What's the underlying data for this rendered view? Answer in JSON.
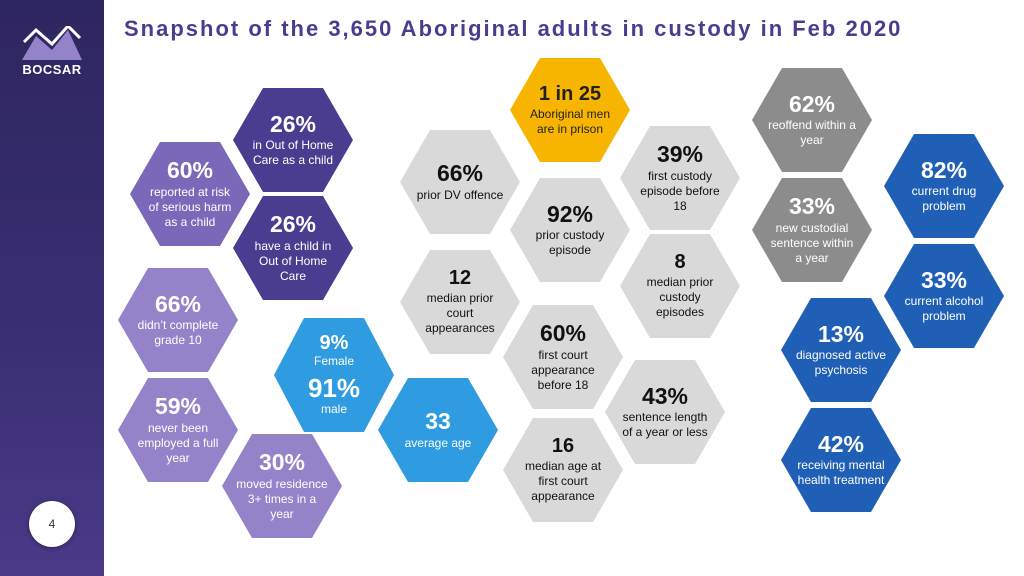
{
  "brand": "BOCSAR",
  "title": "Snapshot of the 3,650 Aboriginal adults in custody in Feb 2020",
  "page_number": "4",
  "colors": {
    "purple_dark": "#4a3d8f",
    "purple_light": "#9583c9",
    "grey": "#d9d9d9",
    "gold": "#f7b500",
    "blue_dark": "#1f5fb5",
    "blue_light": "#2f9be0"
  },
  "cells": {
    "oohc": {
      "value": "26%",
      "text": "in Out of Home Care as a child"
    },
    "risk": {
      "value": "60%",
      "text": "reported at risk of serious harm as a child"
    },
    "child_oohc": {
      "value": "26%",
      "text": "have a child in Out of Home Care"
    },
    "grade10": {
      "value": "66%",
      "text": "didn’t complete grade 10"
    },
    "employed": {
      "value": "59%",
      "text": "never been employed a full year"
    },
    "residence": {
      "value": "30%",
      "text": "moved residence 3+ times in a year"
    },
    "female": {
      "value": "9%",
      "text": "Female"
    },
    "male": {
      "value": "91%",
      "text": "male"
    },
    "age": {
      "value": "33",
      "text": "average age"
    },
    "dv": {
      "value": "66%",
      "text": "prior DV offence"
    },
    "court": {
      "value": "12",
      "text": "median prior court appearances"
    },
    "prison": {
      "value": "1 in 25",
      "text": "Aboriginal men are in prison"
    },
    "prior_custody": {
      "value": "92%",
      "text": "prior custody episode"
    },
    "first_court": {
      "value": "60%",
      "text": "first court appearance before 18"
    },
    "first_custody": {
      "value": "39%",
      "text": "first custody episode before 18"
    },
    "median_custody": {
      "value": "8",
      "text": "median prior custody episodes"
    },
    "sentence": {
      "value": "43%",
      "text": "sentence length of a year or less"
    },
    "first_age": {
      "value": "16",
      "text": "median age at first court appearance"
    },
    "reoffend": {
      "value": "62%",
      "text": "reoffend within a year"
    },
    "new_sentence": {
      "value": "33%",
      "text": "new custodial sentence within a year"
    },
    "drug": {
      "value": "82%",
      "text": "current drug problem"
    },
    "alcohol": {
      "value": "33%",
      "text": "current alcohol problem"
    },
    "psychosis": {
      "value": "13%",
      "text": "diagnosed active psychosis"
    },
    "mental": {
      "value": "42%",
      "text": "receiving mental health treatment"
    }
  }
}
